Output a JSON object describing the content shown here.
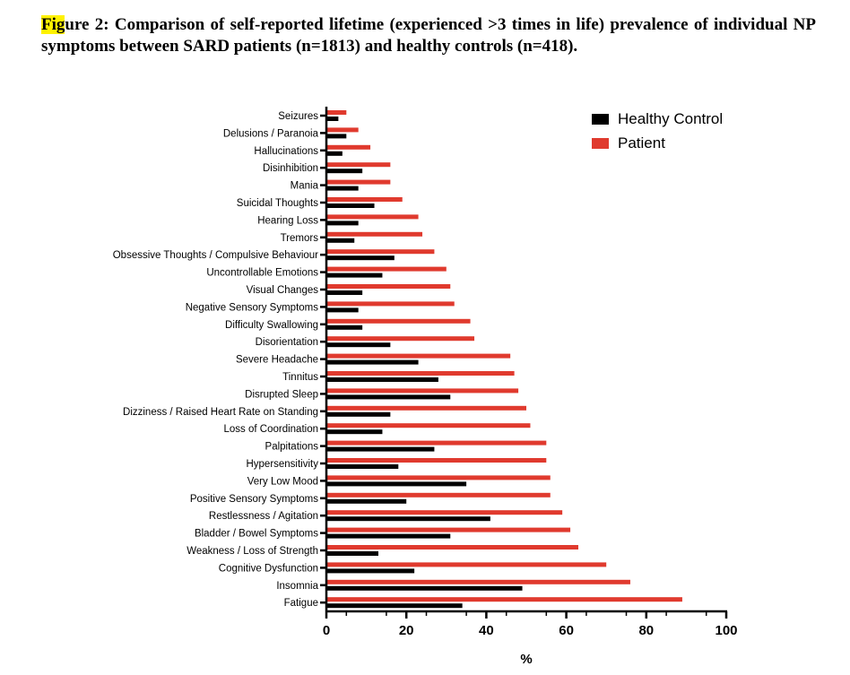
{
  "caption": {
    "highlight": "Fig",
    "rest": "ure 2: Comparison of self-reported lifetime (experienced >3 times in life) prevalence of individual NP symptoms between SARD patients (n=1813) and healthy controls (n=418)."
  },
  "colors": {
    "healthy_control": "#000000",
    "patient": "#e03a2e"
  },
  "chart_data": {
    "type": "bar",
    "orientation": "horizontal",
    "title": "",
    "xlabel": "%",
    "ylabel": "",
    "xlim": [
      0,
      100
    ],
    "xticks": [
      0,
      20,
      40,
      60,
      80,
      100
    ],
    "legend_position": "top-right",
    "categories": [
      "Seizures",
      "Delusions / Paranoia",
      "Hallucinations",
      "Disinhibition",
      "Mania",
      "Suicidal Thoughts",
      "Hearing Loss",
      "Tremors",
      "Obsessive Thoughts / Compulsive Behaviour",
      "Uncontrollable Emotions",
      "Visual Changes",
      "Negative Sensory Symptoms",
      "Difficulty Swallowing",
      "Disorientation",
      "Severe Headache",
      "Tinnitus",
      "Disrupted Sleep",
      "Dizziness / Raised Heart Rate on Standing",
      "Loss of Coordination",
      "Palpitations",
      "Hypersensitivity",
      "Very Low Mood",
      "Positive Sensory Symptoms",
      "Restlessness / Agitation",
      "Bladder / Bowel Symptoms",
      "Weakness / Loss of Strength",
      "Cognitive Dysfunction",
      "Insomnia",
      "Fatigue"
    ],
    "series": [
      {
        "name": "Healthy Control",
        "values": [
          3,
          5,
          4,
          9,
          8,
          12,
          8,
          7,
          17,
          14,
          9,
          8,
          9,
          16,
          23,
          28,
          31,
          16,
          14,
          27,
          18,
          35,
          20,
          41,
          31,
          13,
          22,
          49,
          34
        ]
      },
      {
        "name": "Patient",
        "values": [
          5,
          8,
          11,
          16,
          16,
          19,
          23,
          24,
          27,
          30,
          31,
          32,
          36,
          37,
          46,
          47,
          48,
          50,
          51,
          55,
          55,
          56,
          56,
          59,
          61,
          63,
          70,
          76,
          89
        ]
      }
    ]
  }
}
